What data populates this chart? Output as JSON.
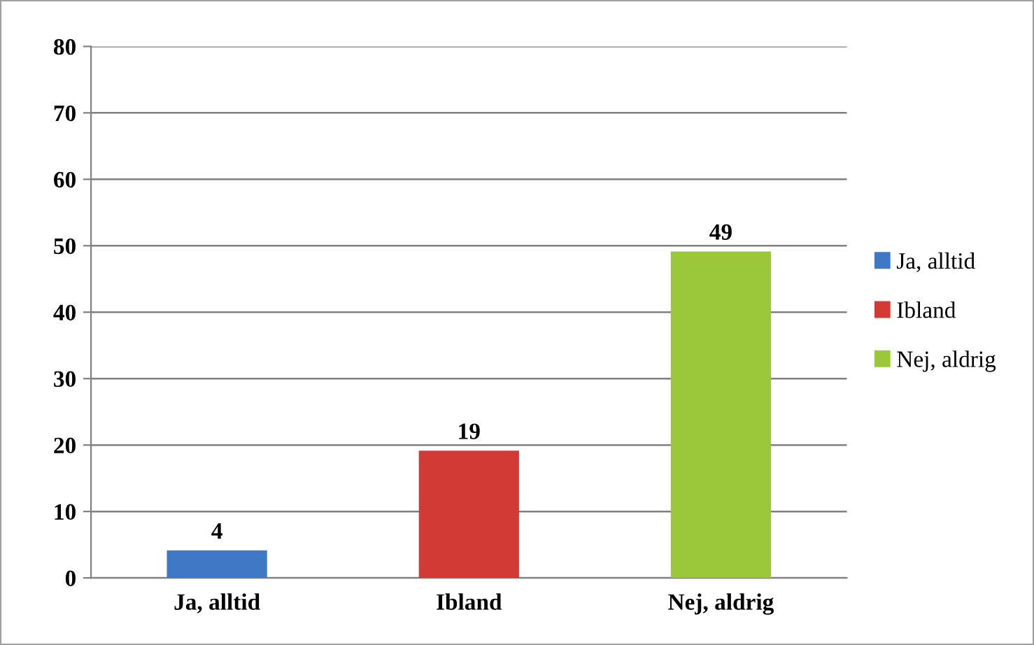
{
  "chart_data": {
    "type": "bar",
    "categories": [
      "Ja, alltid",
      "Ibland",
      "Nej, aldrig"
    ],
    "series": [
      {
        "name": "Ja, alltid",
        "color": "#3f78c4",
        "values": [
          4,
          null,
          null
        ]
      },
      {
        "name": "Ibland",
        "color": "#d23a36",
        "values": [
          null,
          19,
          null
        ]
      },
      {
        "name": "Nej, aldrig",
        "color": "#9bc83a",
        "values": [
          null,
          null,
          49
        ]
      }
    ],
    "ylim": [
      0,
      80
    ],
    "yticks": [
      0,
      10,
      20,
      30,
      40,
      50,
      60,
      70,
      80
    ],
    "grid": "y",
    "legend": "right",
    "data_labels": true
  }
}
